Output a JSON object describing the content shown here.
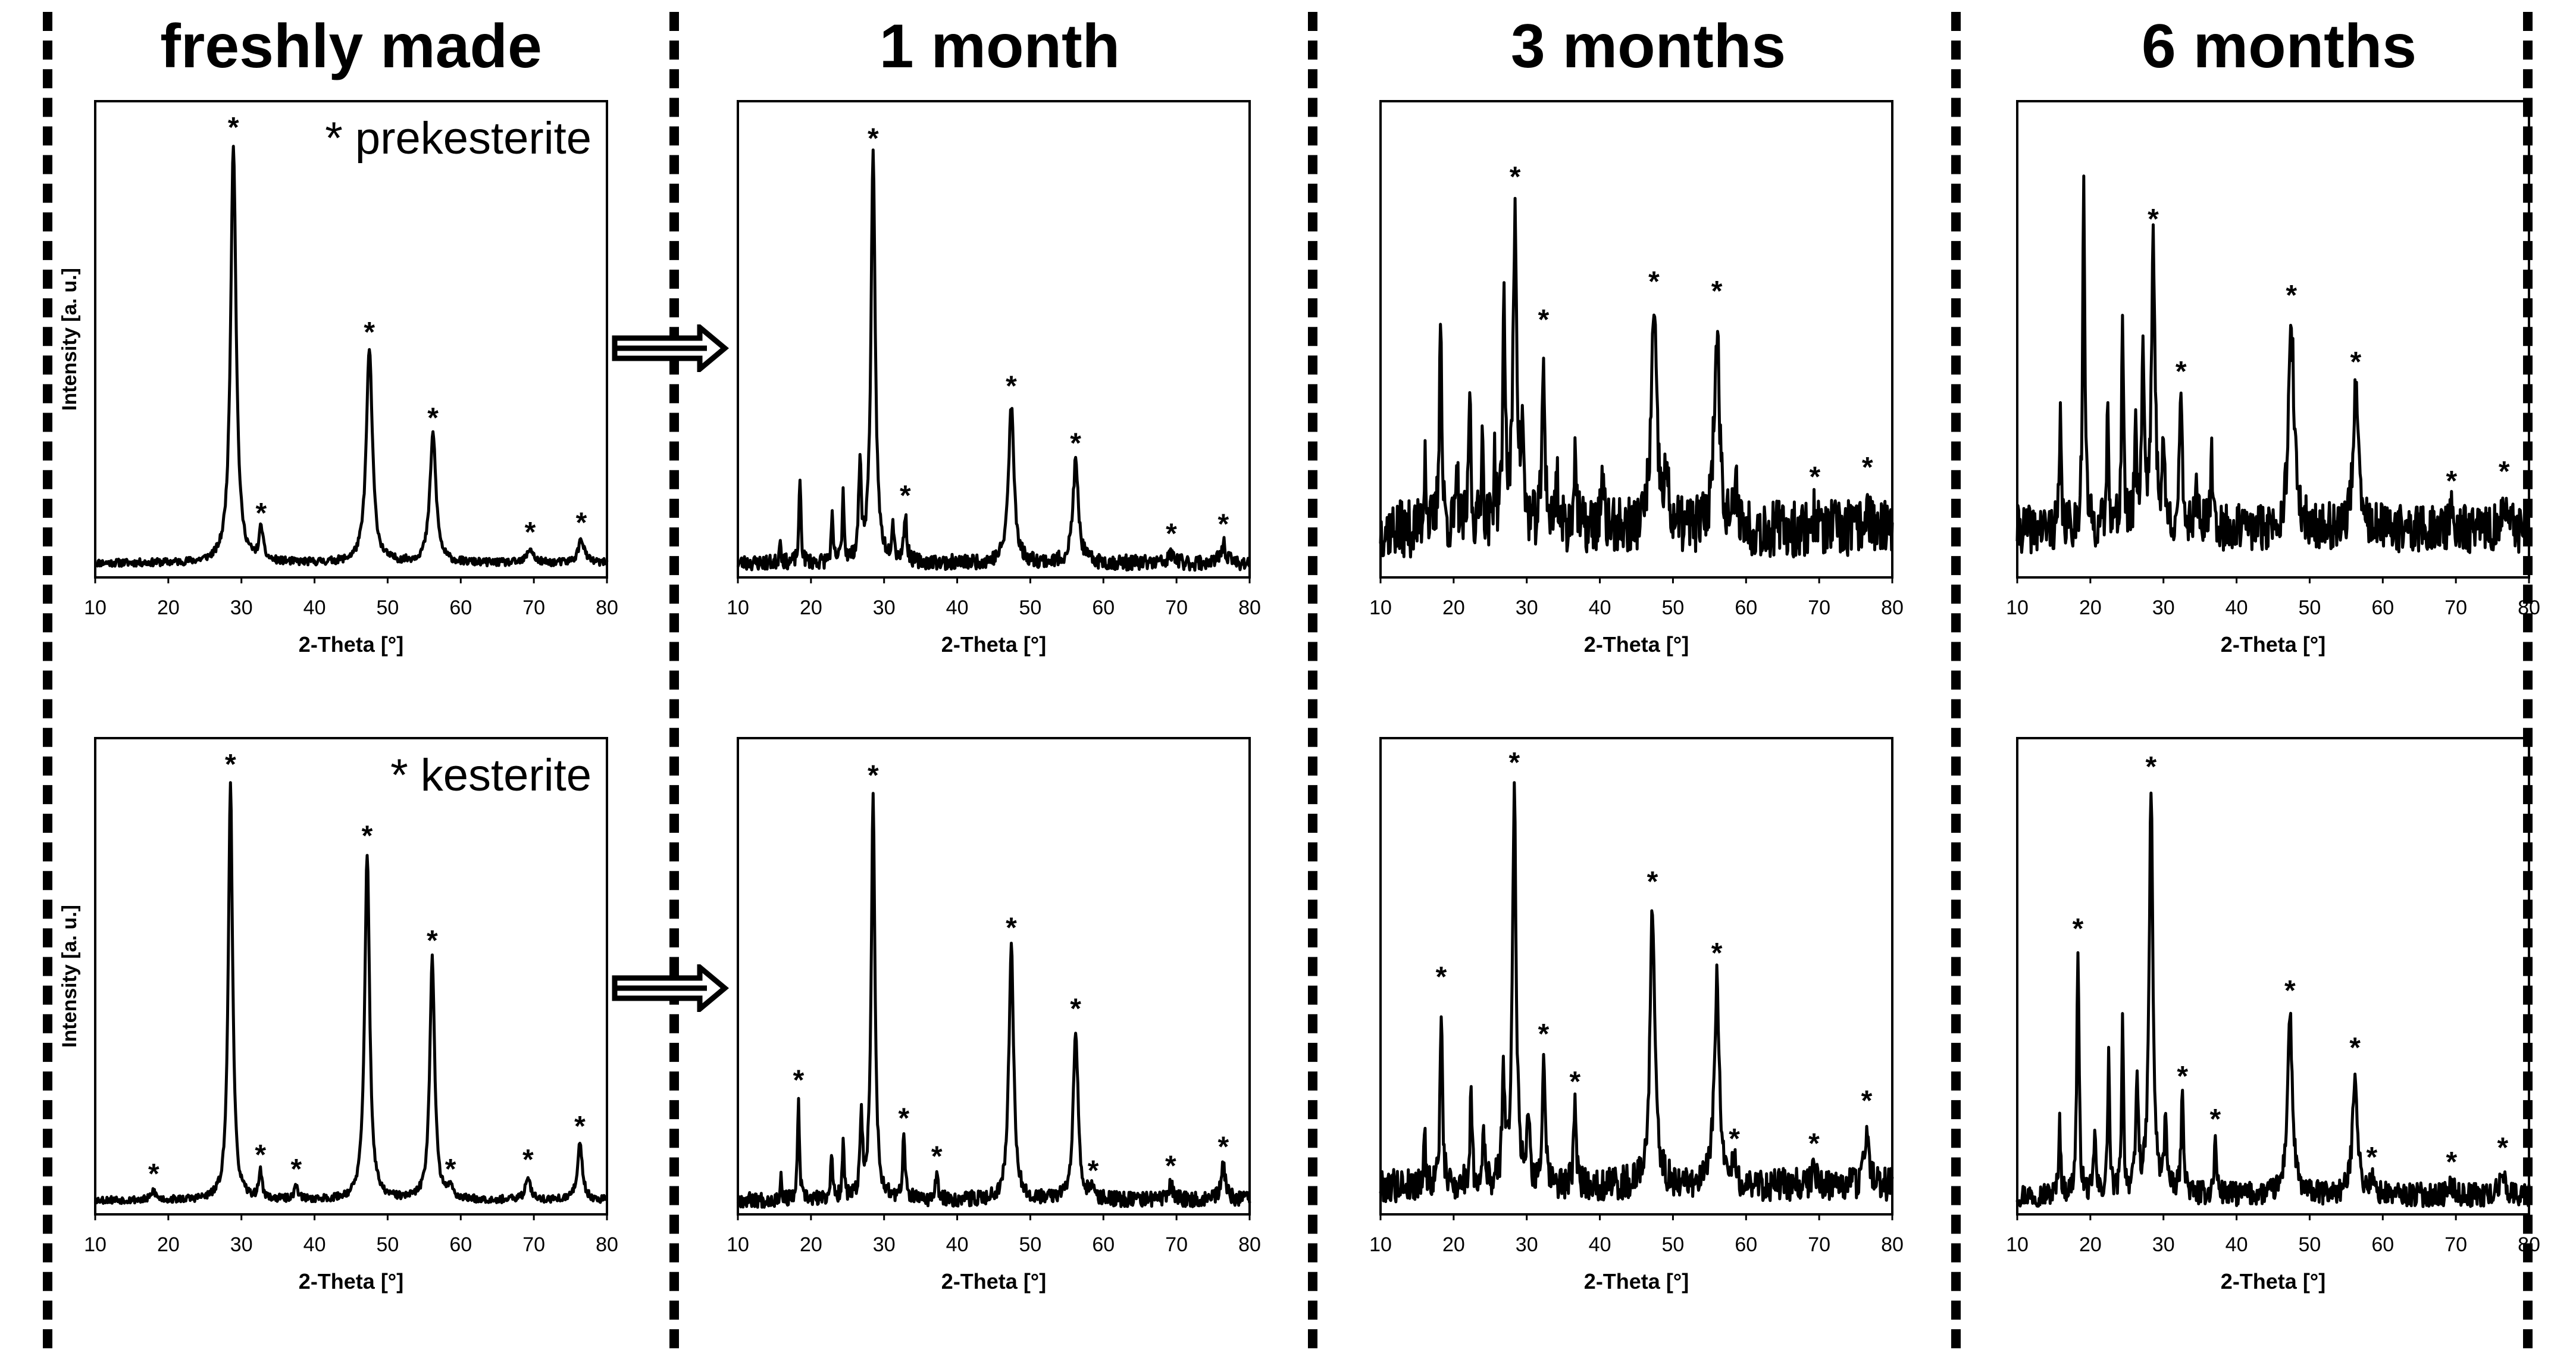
{
  "figure": {
    "columns": [
      {
        "title": "freshly made"
      },
      {
        "title": "1 month"
      },
      {
        "title": "3 months"
      },
      {
        "title": "6 months"
      }
    ],
    "legends": [
      {
        "label": "* prekesterite"
      },
      {
        "label": "* kesterite"
      }
    ]
  },
  "colors": {
    "line": "#000000",
    "background": "#ffffff"
  },
  "chart_data": [
    {
      "id": "p0",
      "type": "line",
      "title": "",
      "xlabel": "2-Theta [°]",
      "ylabel": "Intensity [a. u.]",
      "xlim": [
        10,
        80
      ],
      "ylim": [
        0,
        100
      ],
      "xticks": [
        10,
        20,
        30,
        40,
        50,
        60,
        70,
        80
      ],
      "base": 3,
      "noise": 0.8,
      "noise_seed": 11,
      "peaks": [
        [
          28.9,
          88,
          0.45
        ],
        [
          32.7,
          7,
          0.3
        ],
        [
          47.5,
          45,
          0.5
        ],
        [
          56.2,
          27,
          0.5
        ],
        [
          69.5,
          3,
          0.5
        ],
        [
          76.5,
          5,
          0.5
        ]
      ],
      "marked_peaks": [
        28.9,
        32.7,
        47.5,
        56.2,
        69.5,
        76.5
      ]
    },
    {
      "id": "p1",
      "type": "line",
      "title": "",
      "xlabel": "2-Theta [°]",
      "ylabel": "",
      "xlim": [
        10,
        80
      ],
      "ylim": [
        0,
        100
      ],
      "xticks": [
        10,
        20,
        30,
        40,
        50,
        60,
        70,
        80
      ],
      "base": 3,
      "noise": 1.6,
      "noise_seed": 23,
      "peaks": [
        [
          15.8,
          6,
          0.12
        ],
        [
          18.5,
          18,
          0.15
        ],
        [
          22.9,
          9,
          0.15
        ],
        [
          24.4,
          15,
          0.15
        ],
        [
          26.7,
          20,
          0.2
        ],
        [
          28.5,
          85,
          0.35
        ],
        [
          31.2,
          8,
          0.18
        ],
        [
          32.9,
          10,
          0.22
        ],
        [
          47.4,
          33,
          0.45
        ],
        [
          56.2,
          21,
          0.45
        ],
        [
          69.3,
          2,
          0.4
        ],
        [
          76.4,
          4,
          0.4
        ]
      ],
      "marked_peaks": [
        28.5,
        32.9,
        47.4,
        56.2,
        69.3,
        76.4
      ]
    },
    {
      "id": "p2",
      "type": "line",
      "title": "",
      "xlabel": "2-Theta [°]",
      "ylabel": "",
      "xlim": [
        10,
        80
      ],
      "ylim": [
        0,
        100
      ],
      "xticks": [
        10,
        20,
        30,
        40,
        50,
        60,
        70,
        80
      ],
      "base": 10,
      "noise": 6,
      "noise_seed": 37,
      "peaks": [
        [
          16.1,
          18,
          0.15
        ],
        [
          18.2,
          48,
          0.18
        ],
        [
          20.5,
          12,
          0.15
        ],
        [
          22.2,
          32,
          0.15
        ],
        [
          23.9,
          22,
          0.15
        ],
        [
          25.6,
          14,
          0.15
        ],
        [
          26.9,
          48,
          0.2
        ],
        [
          28.4,
          66,
          0.3
        ],
        [
          29.4,
          18,
          0.2
        ],
        [
          32.3,
          36,
          0.22
        ],
        [
          34.1,
          12,
          0.2
        ],
        [
          36.6,
          18,
          0.2
        ],
        [
          40.3,
          10,
          0.25
        ],
        [
          47.4,
          44,
          0.45
        ],
        [
          49.1,
          10,
          0.3
        ],
        [
          56.0,
          42,
          0.45
        ],
        [
          58.7,
          8,
          0.3
        ],
        [
          69.4,
          3,
          0.4
        ],
        [
          76.6,
          5,
          0.4
        ]
      ],
      "marked_peaks": [
        28.4,
        32.3,
        47.4,
        56.0,
        69.4,
        76.6
      ]
    },
    {
      "id": "p3",
      "type": "line",
      "title": "",
      "xlabel": "2-Theta [°]",
      "ylabel": "",
      "xlim": [
        10,
        80
      ],
      "ylim": [
        0,
        100
      ],
      "xticks": [
        10,
        20,
        30,
        40,
        50,
        60,
        70,
        80
      ],
      "base": 10,
      "noise": 5,
      "noise_seed": 41,
      "peaks": [
        [
          15.9,
          22,
          0.15
        ],
        [
          19.1,
          72,
          0.18
        ],
        [
          22.4,
          28,
          0.15
        ],
        [
          24.4,
          46,
          0.15
        ],
        [
          26.2,
          24,
          0.15
        ],
        [
          27.2,
          38,
          0.2
        ],
        [
          28.6,
          58,
          0.3
        ],
        [
          30.0,
          16,
          0.2
        ],
        [
          32.4,
          26,
          0.22
        ],
        [
          34.5,
          12,
          0.2
        ],
        [
          36.6,
          14,
          0.2
        ],
        [
          47.5,
          42,
          0.45
        ],
        [
          56.3,
          28,
          0.45
        ],
        [
          69.4,
          3,
          0.4
        ],
        [
          76.6,
          5,
          0.4
        ]
      ],
      "marked_peaks": [
        28.6,
        32.4,
        47.5,
        56.3,
        69.4,
        76.6
      ]
    },
    {
      "id": "p4",
      "type": "line",
      "title": "",
      "xlabel": "2-Theta [°]",
      "ylabel": "Intensity [a. u.]",
      "xlim": [
        10,
        80
      ],
      "ylim": [
        0,
        100
      ],
      "xticks": [
        10,
        20,
        30,
        40,
        50,
        60,
        70,
        80
      ],
      "base": 3,
      "noise": 0.8,
      "noise_seed": 53,
      "peaks": [
        [
          18.0,
          2,
          0.3
        ],
        [
          28.5,
          88,
          0.35
        ],
        [
          32.6,
          6,
          0.25
        ],
        [
          37.5,
          3,
          0.3
        ],
        [
          47.2,
          73,
          0.4
        ],
        [
          56.1,
          51,
          0.4
        ],
        [
          58.6,
          3,
          0.3
        ],
        [
          69.2,
          5,
          0.4
        ],
        [
          76.3,
          12,
          0.4
        ]
      ],
      "marked_peaks": [
        18.0,
        28.5,
        32.6,
        37.5,
        47.2,
        56.1,
        58.6,
        69.2,
        76.3
      ]
    },
    {
      "id": "p5",
      "type": "line",
      "title": "",
      "xlabel": "2-Theta [°]",
      "ylabel": "",
      "xlim": [
        10,
        80
      ],
      "ylim": [
        0,
        100
      ],
      "xticks": [
        10,
        20,
        30,
        40,
        50,
        60,
        70,
        80
      ],
      "base": 3,
      "noise": 1.6,
      "noise_seed": 67,
      "peaks": [
        [
          15.9,
          5,
          0.12
        ],
        [
          18.3,
          21,
          0.15
        ],
        [
          22.8,
          10,
          0.15
        ],
        [
          24.4,
          13,
          0.15
        ],
        [
          26.9,
          16,
          0.2
        ],
        [
          28.5,
          85,
          0.3
        ],
        [
          32.7,
          13,
          0.2
        ],
        [
          37.2,
          5,
          0.2
        ],
        [
          47.4,
          53,
          0.4
        ],
        [
          56.2,
          36,
          0.4
        ],
        [
          58.6,
          2,
          0.3
        ],
        [
          69.2,
          3,
          0.4
        ],
        [
          76.4,
          7,
          0.4
        ]
      ],
      "marked_peaks": [
        18.3,
        28.5,
        32.7,
        37.2,
        47.4,
        56.2,
        58.6,
        69.2,
        76.4
      ]
    },
    {
      "id": "p6",
      "type": "line",
      "title": "",
      "xlabel": "2-Theta [°]",
      "ylabel": "",
      "xlim": [
        10,
        80
      ],
      "ylim": [
        0,
        100
      ],
      "xticks": [
        10,
        20,
        30,
        40,
        50,
        60,
        70,
        80
      ],
      "base": 6,
      "noise": 3.5,
      "noise_seed": 79,
      "peaks": [
        [
          16.0,
          12,
          0.15
        ],
        [
          18.3,
          38,
          0.18
        ],
        [
          22.4,
          22,
          0.15
        ],
        [
          24.1,
          14,
          0.15
        ],
        [
          26.8,
          24,
          0.2
        ],
        [
          28.3,
          83,
          0.3
        ],
        [
          30.2,
          16,
          0.2
        ],
        [
          32.3,
          26,
          0.22
        ],
        [
          36.6,
          16,
          0.2
        ],
        [
          47.2,
          58,
          0.4
        ],
        [
          56.0,
          43,
          0.4
        ],
        [
          58.4,
          4,
          0.3
        ],
        [
          69.3,
          3,
          0.4
        ],
        [
          76.5,
          12,
          0.4
        ]
      ],
      "marked_peaks": [
        18.3,
        28.3,
        32.3,
        36.6,
        47.2,
        56.0,
        58.4,
        69.3,
        76.5
      ]
    },
    {
      "id": "p7",
      "type": "line",
      "title": "",
      "xlabel": "2-Theta [°]",
      "ylabel": "",
      "xlim": [
        10,
        80
      ],
      "ylim": [
        0,
        100
      ],
      "xticks": [
        10,
        20,
        30,
        40,
        50,
        60,
        70,
        80
      ],
      "base": 4,
      "noise": 2.5,
      "noise_seed": 97,
      "peaks": [
        [
          15.8,
          16,
          0.15
        ],
        [
          18.3,
          51,
          0.18
        ],
        [
          20.6,
          14,
          0.15
        ],
        [
          22.5,
          30,
          0.15
        ],
        [
          24.4,
          38,
          0.15
        ],
        [
          26.4,
          24,
          0.2
        ],
        [
          28.3,
          85,
          0.3
        ],
        [
          30.3,
          16,
          0.2
        ],
        [
          32.6,
          20,
          0.22
        ],
        [
          37.1,
          11,
          0.2
        ],
        [
          47.3,
          38,
          0.4
        ],
        [
          56.2,
          26,
          0.4
        ],
        [
          58.5,
          3,
          0.3
        ],
        [
          69.4,
          2,
          0.4
        ],
        [
          76.4,
          5,
          0.4
        ]
      ],
      "marked_peaks": [
        18.3,
        28.3,
        32.6,
        37.1,
        47.3,
        56.2,
        58.5,
        69.4,
        76.4
      ]
    }
  ]
}
